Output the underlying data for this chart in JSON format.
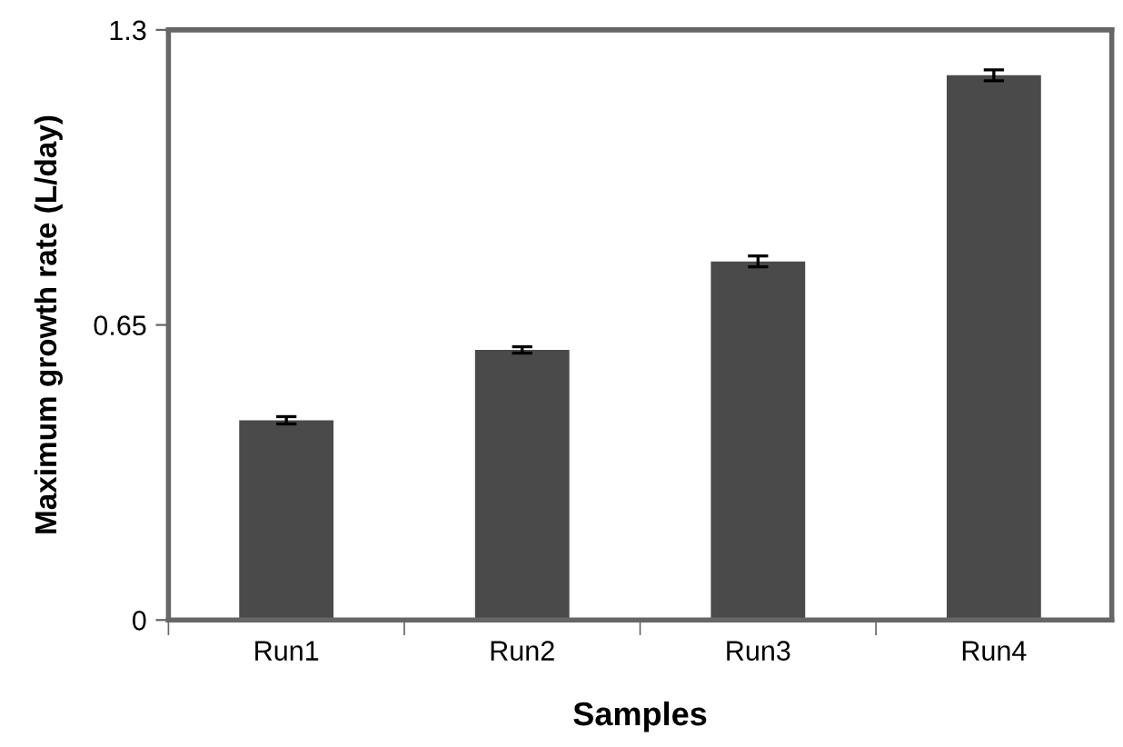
{
  "chart_data": {
    "type": "bar",
    "xlabel": "Samples",
    "ylabel": "Maximum growth rate (L/day)",
    "categories": [
      "Run1",
      "Run2",
      "Run3",
      "Run4"
    ],
    "values": [
      0.44,
      0.595,
      0.79,
      1.2
    ],
    "errors": [
      0.008,
      0.007,
      0.012,
      0.012
    ],
    "color": "#4a4a4a",
    "ylim": [
      0,
      1.3
    ],
    "yticks": [
      0,
      0.65,
      1.3
    ],
    "grid": false
  }
}
